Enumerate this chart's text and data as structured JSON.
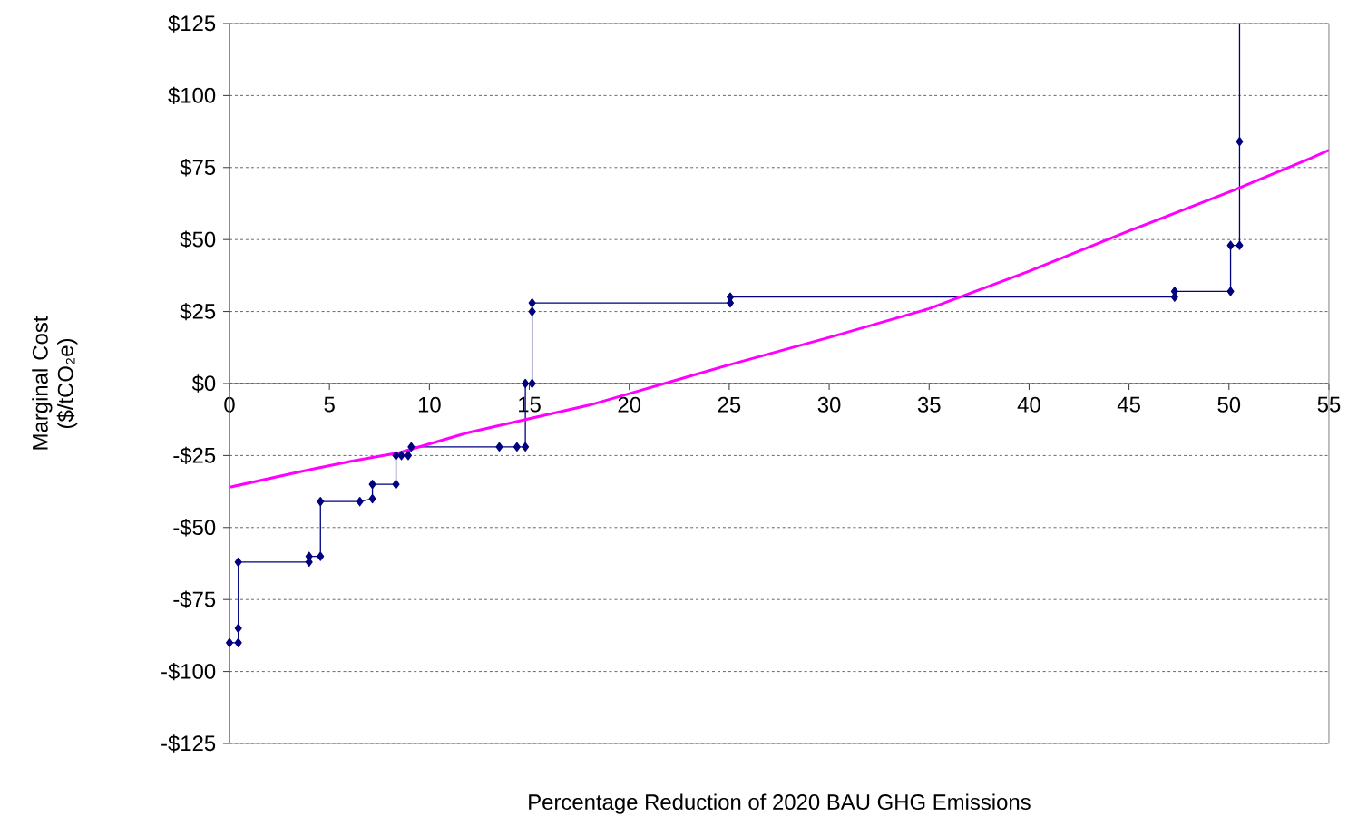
{
  "chart_data": {
    "type": "line",
    "xlabel": "Percentage Reduction of 2020 BAU GHG Emissions",
    "ylabel": "Marginal Cost ($/tCO₂e)",
    "xlim": [
      0,
      55
    ],
    "xticks": [
      0,
      5,
      10,
      15,
      20,
      25,
      30,
      35,
      40,
      45,
      50,
      55
    ],
    "ylim": [
      -125,
      125
    ],
    "yticks": [
      {
        "value": -125,
        "label": "-$125"
      },
      {
        "value": -100,
        "label": "-$100"
      },
      {
        "value": -75,
        "label": "-$75"
      },
      {
        "value": -50,
        "label": "-$50"
      },
      {
        "value": -25,
        "label": "-$25"
      },
      {
        "value": 0,
        "label": "$0"
      },
      {
        "value": 25,
        "label": "$25"
      },
      {
        "value": 50,
        "label": "$50"
      },
      {
        "value": 75,
        "label": "$75"
      },
      {
        "value": 100,
        "label": "$100"
      },
      {
        "value": 125,
        "label": "$125"
      }
    ],
    "grid": "y",
    "series": [
      {
        "color": "#000080",
        "marker": "diamond",
        "x": [
          0,
          0.44,
          0.44,
          0.44,
          3.98,
          3.98,
          4.55,
          4.55,
          6.52,
          7.15,
          7.15,
          8.33,
          8.33,
          8.6,
          8.94,
          9.09,
          13.5,
          14.38,
          14.8,
          14.8,
          15.14,
          15.14,
          15.14,
          25.05,
          25.05,
          47.28,
          47.28,
          50.08,
          50.08,
          50.53,
          50.53
        ],
        "values": [
          -90,
          -90,
          -85,
          -62,
          -62,
          -60,
          -60,
          -41,
          -41,
          -40,
          -35,
          -35,
          -25,
          -25,
          -25,
          -22,
          -22,
          -22,
          -22,
          0,
          0,
          25,
          28,
          28,
          30,
          30,
          32,
          32,
          48,
          48,
          84
        ]
      },
      {
        "color": "#000080",
        "marker": "none",
        "x": [
          50.53,
          50.53
        ],
        "values": [
          84,
          125
        ]
      },
      {
        "color": "#ff00ff",
        "marker": "none",
        "x": [
          0,
          3.95,
          6.07,
          8.5,
          11.96,
          18,
          20,
          25,
          30,
          35,
          40,
          45,
          50.2,
          54,
          55
        ],
        "values": [
          -36,
          -30,
          -27,
          -24,
          -17,
          -7.5,
          -3.5,
          6.5,
          16,
          26,
          39,
          53,
          67,
          78,
          81
        ]
      }
    ]
  }
}
